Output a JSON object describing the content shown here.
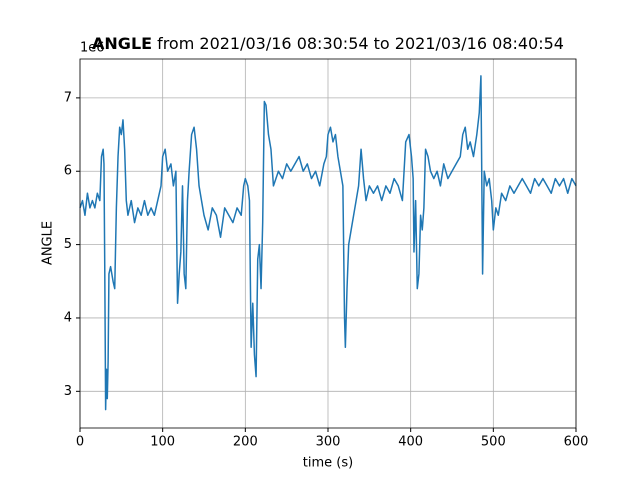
{
  "chart_data": {
    "type": "line",
    "title": {
      "bold": "ANGLE",
      "rest": "from 2021/03/16 08:30:54 to 2021/03/16 08:40:54"
    },
    "offset_label": "1e6",
    "xlabel": "time (s)",
    "ylabel": "ANGLE",
    "xlim": [
      0,
      600
    ],
    "ylim": [
      2.5,
      7.53
    ],
    "xticks": [
      0,
      100,
      200,
      300,
      400,
      500,
      600
    ],
    "yticks": [
      3,
      4,
      5,
      6,
      7
    ],
    "grid": true,
    "series": [
      {
        "name": "ANGLE",
        "color": "#1f77b4",
        "x": [
          0,
          3,
          6,
          9,
          12,
          15,
          18,
          21,
          24,
          26,
          28,
          29,
          30,
          31,
          32,
          33,
          34,
          35,
          37,
          40,
          42,
          44,
          46,
          48,
          50,
          52,
          54,
          56,
          58,
          62,
          66,
          70,
          74,
          78,
          82,
          86,
          90,
          94,
          98,
          100,
          103,
          106,
          110,
          113,
          116,
          118,
          120,
          122,
          124,
          126,
          128,
          130,
          132,
          135,
          138,
          141,
          144,
          147,
          150,
          155,
          160,
          165,
          170,
          175,
          180,
          185,
          190,
          195,
          198,
          200,
          203,
          205,
          207,
          209,
          211,
          213,
          215,
          217,
          219,
          221,
          223,
          225,
          228,
          231,
          234,
          237,
          240,
          245,
          250,
          255,
          260,
          265,
          270,
          275,
          280,
          285,
          290,
          295,
          298,
          300,
          303,
          306,
          309,
          312,
          315,
          318,
          320,
          321,
          323,
          325,
          328,
          331,
          334,
          337,
          340,
          343,
          346,
          350,
          355,
          360,
          365,
          370,
          375,
          380,
          385,
          390,
          394,
          398,
          401,
          403,
          404,
          406,
          408,
          410,
          412,
          414,
          416,
          418,
          421,
          424,
          428,
          432,
          436,
          440,
          445,
          450,
          455,
          460,
          463,
          466,
          469,
          472,
          476,
          480,
          483,
          485,
          487,
          489,
          492,
          495,
          498,
          500,
          503,
          506,
          510,
          515,
          520,
          525,
          530,
          535,
          540,
          545,
          550,
          555,
          560,
          565,
          570,
          575,
          580,
          585,
          590,
          595,
          600
        ],
        "values": [
          5.5,
          5.6,
          5.4,
          5.7,
          5.5,
          5.6,
          5.5,
          5.7,
          5.6,
          6.2,
          6.3,
          6.1,
          4.6,
          2.75,
          3.3,
          2.9,
          3.4,
          4.6,
          4.7,
          4.5,
          4.4,
          5.5,
          6.2,
          6.6,
          6.5,
          6.7,
          6.3,
          5.6,
          5.4,
          5.6,
          5.3,
          5.5,
          5.4,
          5.6,
          5.4,
          5.5,
          5.4,
          5.6,
          5.8,
          6.2,
          6.3,
          6.0,
          6.1,
          5.8,
          6.0,
          4.2,
          4.6,
          4.9,
          5.8,
          4.6,
          4.4,
          5.6,
          6.0,
          6.5,
          6.6,
          6.3,
          5.8,
          5.6,
          5.4,
          5.2,
          5.5,
          5.4,
          5.1,
          5.5,
          5.4,
          5.3,
          5.5,
          5.4,
          5.8,
          5.9,
          5.8,
          5.6,
          3.6,
          4.2,
          3.5,
          3.2,
          4.8,
          5.0,
          4.4,
          5.3,
          6.95,
          6.9,
          6.5,
          6.3,
          5.8,
          5.9,
          6.0,
          5.9,
          6.1,
          6.0,
          6.1,
          6.2,
          6.0,
          6.1,
          5.9,
          6.0,
          5.8,
          6.1,
          6.2,
          6.5,
          6.6,
          6.4,
          6.5,
          6.2,
          6.0,
          5.8,
          4.0,
          3.6,
          4.4,
          5.0,
          5.2,
          5.4,
          5.6,
          5.8,
          6.3,
          5.9,
          5.6,
          5.8,
          5.7,
          5.8,
          5.6,
          5.8,
          5.7,
          5.9,
          5.8,
          5.6,
          6.4,
          6.5,
          6.2,
          5.9,
          4.9,
          5.6,
          4.4,
          4.6,
          5.4,
          5.2,
          5.5,
          6.3,
          6.2,
          6.0,
          5.9,
          6.0,
          5.8,
          6.1,
          5.9,
          6.0,
          6.1,
          6.2,
          6.5,
          6.6,
          6.3,
          6.4,
          6.2,
          6.5,
          6.8,
          7.3,
          4.6,
          6.0,
          5.8,
          5.9,
          5.6,
          5.2,
          5.5,
          5.4,
          5.7,
          5.6,
          5.8,
          5.7,
          5.8,
          5.9,
          5.8,
          5.7,
          5.9,
          5.8,
          5.9,
          5.8,
          5.7,
          5.9,
          5.8,
          5.9,
          5.7,
          5.9,
          5.8
        ]
      }
    ]
  }
}
